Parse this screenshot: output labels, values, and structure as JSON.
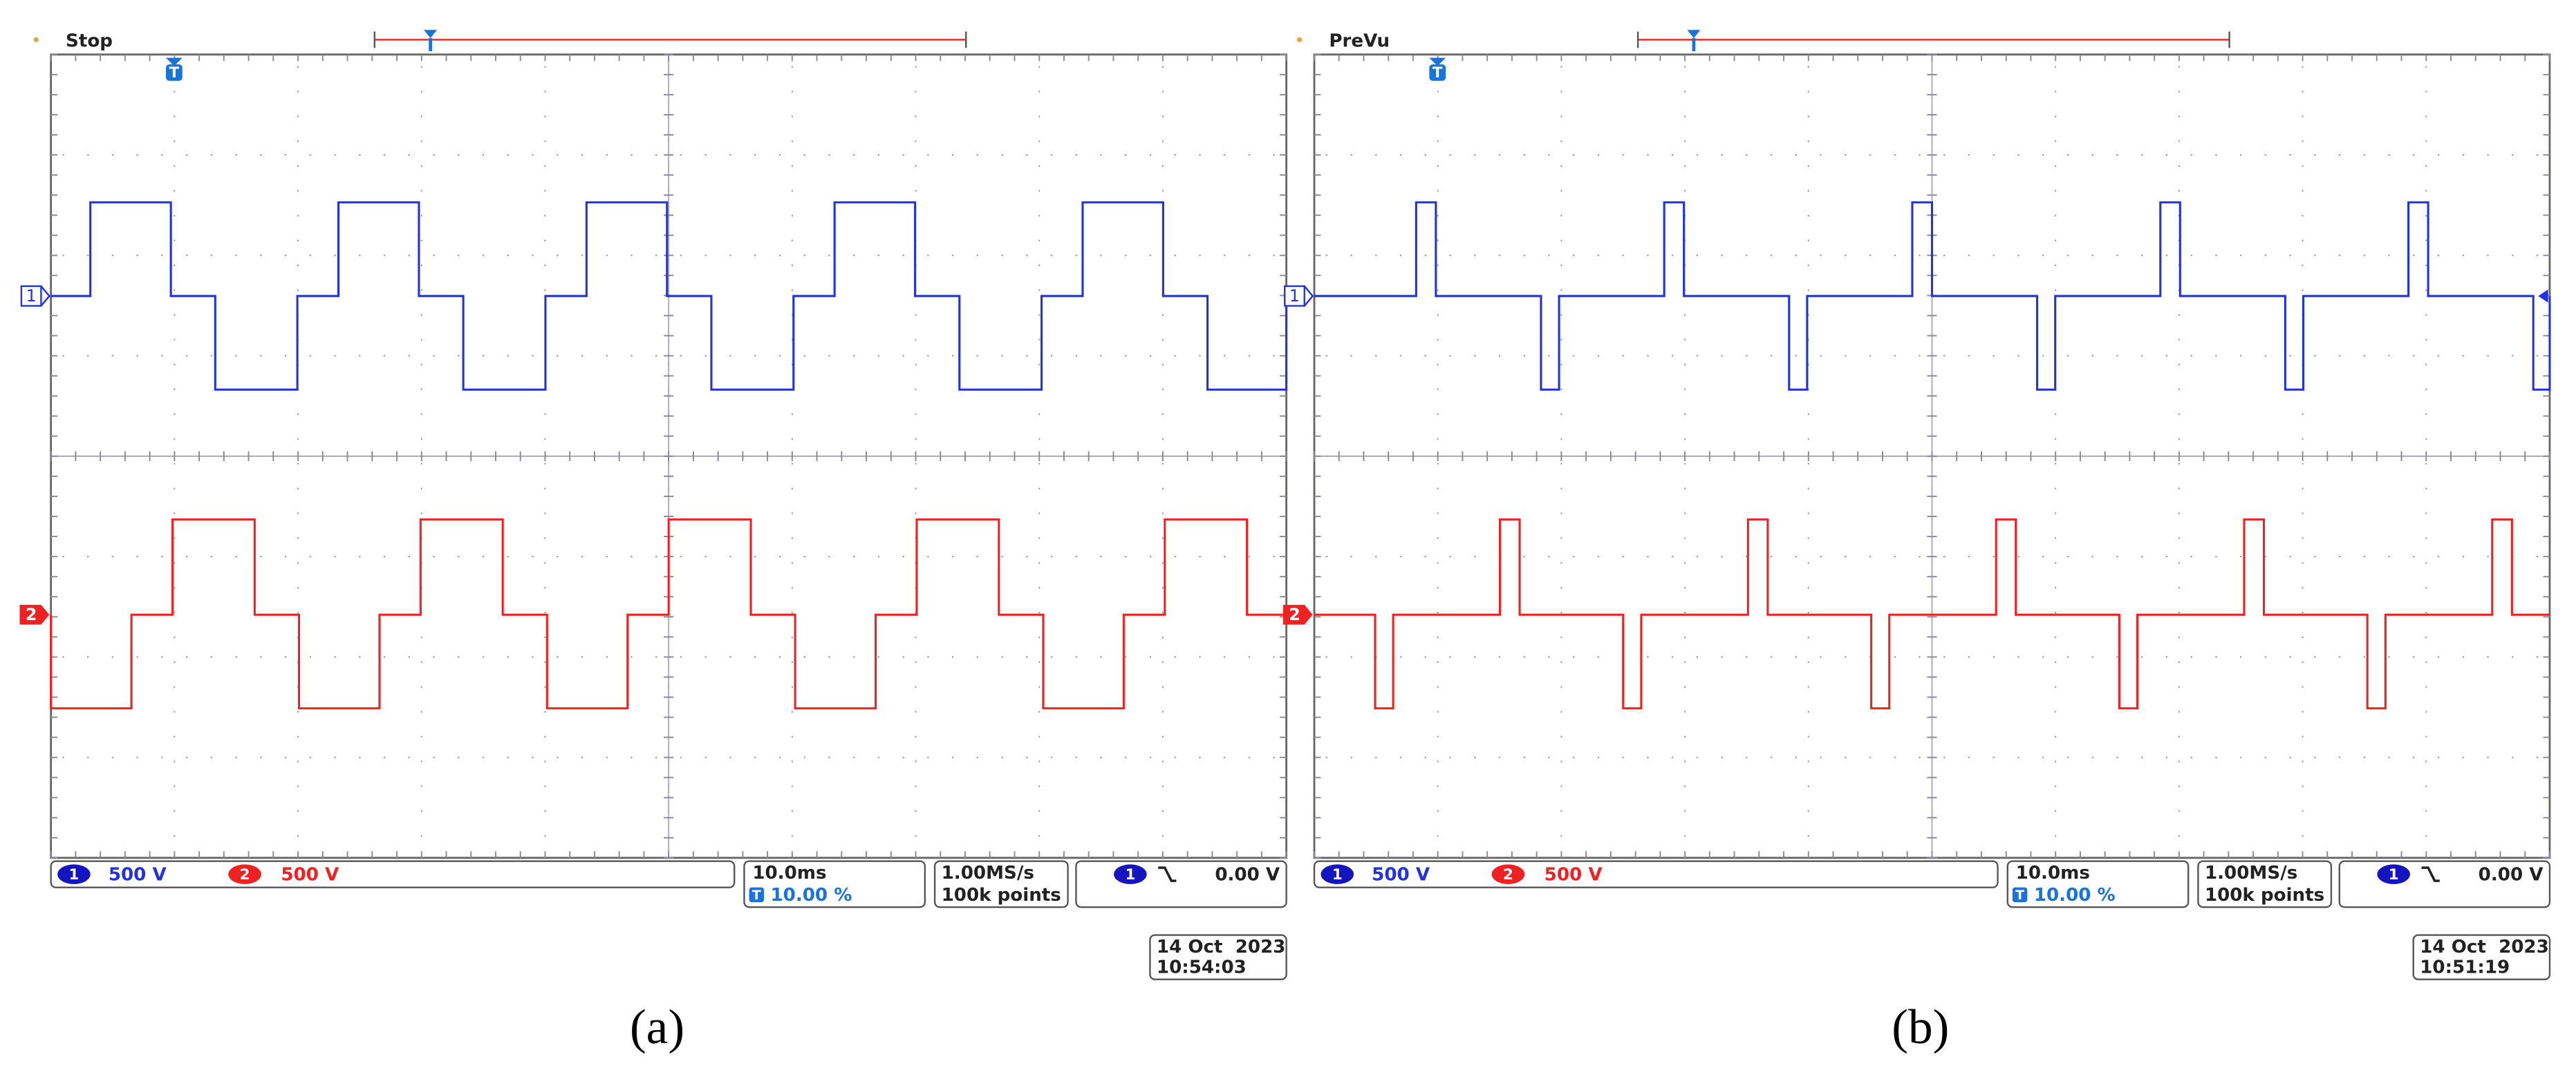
{
  "panels": [
    {
      "status": "Stop",
      "trigger_icon": "T",
      "ch1_marker": "1",
      "ch2_marker": "2",
      "ch1_badge": "1",
      "ch1_scale": "500 V",
      "ch2_badge": "2",
      "ch2_scale": "500 V",
      "timebase": "10.0ms",
      "trigger_position": "10.00 %",
      "sample_rate": "1.00MS/s",
      "record_length": "100k points",
      "trigger_source": "1",
      "trigger_level": "0.00 V",
      "date": "14 Oct  2023",
      "time": "10:54:03",
      "caption": "(a)"
    },
    {
      "status": "PreVu",
      "trigger_icon": "T",
      "ch1_marker": "1",
      "ch2_marker": "2",
      "ch1_badge": "1",
      "ch1_scale": "500 V",
      "ch2_badge": "2",
      "ch2_scale": "500 V",
      "timebase": "10.0ms",
      "trigger_position": "10.00 %",
      "sample_rate": "1.00MS/s",
      "record_length": "100k points",
      "trigger_source": "1",
      "trigger_level": "0.00 V",
      "date": "14 Oct  2023",
      "time": "10:51:19",
      "caption": "(b)"
    }
  ]
}
